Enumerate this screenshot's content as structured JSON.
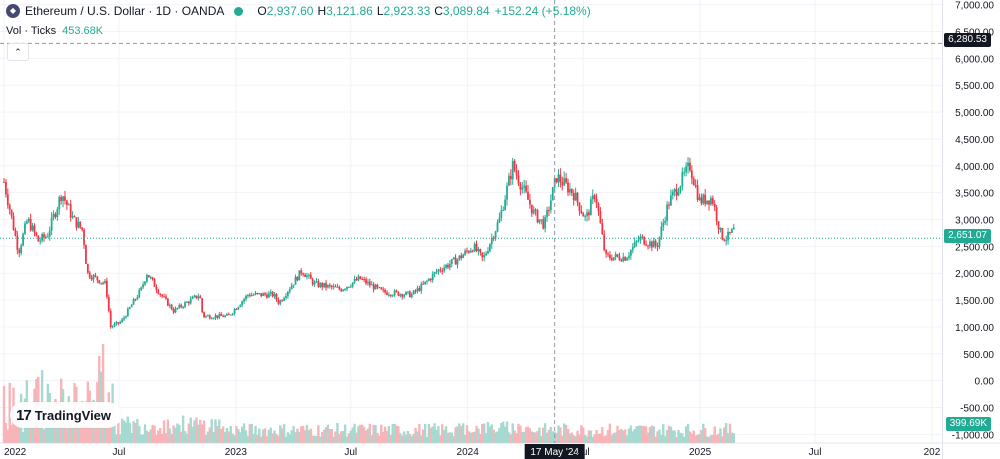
{
  "header": {
    "symbol_title": "Ethereum / U.S. Dollar · 1D · OANDA",
    "logo_glyph": "◆",
    "ohlc": [
      {
        "key": "O",
        "value": "2,937.60"
      },
      {
        "key": "H",
        "value": "3,121.86"
      },
      {
        "key": "L",
        "value": "2,923.33"
      },
      {
        "key": "C",
        "value": "3,089.84"
      }
    ],
    "change": "+152.24 (+5.18%)",
    "volume_label": "Vol · Ticks",
    "volume_value": "453.68K",
    "collapse_glyph": "⌃"
  },
  "branding": {
    "mark": "17",
    "name": "TradingView"
  },
  "colors": {
    "up": "#22ab94",
    "down": "#f23645",
    "vol_up": "#a7d9d0",
    "vol_down": "#f7b4b9",
    "grid": "#f0f3fa",
    "axis_text": "#131722"
  },
  "chart_data": {
    "type": "candlestick",
    "title": "Ethereum / U.S. Dollar · 1D · OANDA",
    "y_axis": {
      "ticks": [
        7000,
        6500,
        6000,
        5500,
        5000,
        4500,
        4000,
        3500,
        3000,
        2500,
        2000,
        1500,
        1000,
        500,
        0,
        -500,
        -1000
      ],
      "tick_labels": [
        "7,000.00",
        "6,500.00",
        "6,000.00",
        "5,500.00",
        "5,000.00",
        "4,500.00",
        "4,000.00",
        "3,500.00",
        "3,000.00",
        "2,500.00",
        "2,000.00",
        "1,500.00",
        "1,000.00",
        "500.00",
        "0.00",
        "-500.00",
        "-1,000.00"
      ],
      "range": [
        -1050,
        7050
      ]
    },
    "x_axis": {
      "tick_labels": [
        "2022",
        "Jul",
        "2023",
        "Jul",
        "2024",
        "Jul",
        "2025",
        "Jul",
        "202"
      ],
      "tick_dates": [
        "2022-01-01",
        "2022-07-01",
        "2023-01-01",
        "2023-07-01",
        "2024-01-01",
        "2024-07-01",
        "2025-01-01",
        "2025-07-01",
        "2026-01-01"
      ],
      "range": [
        "2022-01-01",
        "2026-01-20"
      ]
    },
    "price_series": [
      {
        "date": "2022-01-01",
        "close": 3700
      },
      {
        "date": "2022-01-10",
        "close": 3200
      },
      {
        "date": "2022-01-24",
        "close": 2400
      },
      {
        "date": "2022-02-07",
        "close": 3000
      },
      {
        "date": "2022-02-24",
        "close": 2600
      },
      {
        "date": "2022-03-10",
        "close": 2700
      },
      {
        "date": "2022-04-02",
        "close": 3500
      },
      {
        "date": "2022-04-20",
        "close": 3000
      },
      {
        "date": "2022-05-05",
        "close": 2800
      },
      {
        "date": "2022-05-12",
        "close": 2000
      },
      {
        "date": "2022-06-10",
        "close": 1800
      },
      {
        "date": "2022-06-18",
        "close": 1000
      },
      {
        "date": "2022-07-05",
        "close": 1100
      },
      {
        "date": "2022-08-05",
        "close": 1700
      },
      {
        "date": "2022-08-14",
        "close": 2000
      },
      {
        "date": "2022-09-05",
        "close": 1600
      },
      {
        "date": "2022-09-25",
        "close": 1300
      },
      {
        "date": "2022-11-05",
        "close": 1600
      },
      {
        "date": "2022-11-10",
        "close": 1200
      },
      {
        "date": "2022-12-20",
        "close": 1200
      },
      {
        "date": "2023-01-20",
        "close": 1600
      },
      {
        "date": "2023-03-01",
        "close": 1600
      },
      {
        "date": "2023-03-10",
        "close": 1450
      },
      {
        "date": "2023-04-15",
        "close": 2050
      },
      {
        "date": "2023-05-05",
        "close": 1800
      },
      {
        "date": "2023-06-15",
        "close": 1700
      },
      {
        "date": "2023-07-15",
        "close": 1900
      },
      {
        "date": "2023-08-20",
        "close": 1650
      },
      {
        "date": "2023-10-05",
        "close": 1600
      },
      {
        "date": "2023-10-25",
        "close": 1800
      },
      {
        "date": "2023-11-15",
        "close": 2050
      },
      {
        "date": "2023-12-15",
        "close": 2250
      },
      {
        "date": "2024-01-10",
        "close": 2500
      },
      {
        "date": "2024-01-25",
        "close": 2250
      },
      {
        "date": "2024-02-20",
        "close": 3000
      },
      {
        "date": "2024-03-12",
        "close": 4000
      },
      {
        "date": "2024-04-15",
        "close": 3100
      },
      {
        "date": "2024-05-01",
        "close": 2900
      },
      {
        "date": "2024-05-20",
        "close": 3800
      },
      {
        "date": "2024-06-15",
        "close": 3500
      },
      {
        "date": "2024-07-05",
        "close": 3000
      },
      {
        "date": "2024-07-20",
        "close": 3500
      },
      {
        "date": "2024-08-05",
        "close": 2300
      },
      {
        "date": "2024-09-06",
        "close": 2300
      },
      {
        "date": "2024-09-28",
        "close": 2650
      },
      {
        "date": "2024-10-25",
        "close": 2500
      },
      {
        "date": "2024-11-12",
        "close": 3300
      },
      {
        "date": "2024-12-16",
        "close": 4000
      },
      {
        "date": "2024-12-31",
        "close": 3350
      },
      {
        "date": "2025-01-20",
        "close": 3400
      },
      {
        "date": "2025-02-03",
        "close": 2700
      },
      {
        "date": "2025-02-12",
        "close": 2650
      },
      {
        "date": "2025-02-23",
        "close": 2800
      }
    ],
    "crosshair": {
      "date": "2024-05-17",
      "date_label": "17 May '24",
      "price": 6280.53,
      "price_label": "6,280.53"
    },
    "last_price": {
      "value": 2651.07,
      "label": "2,651.07"
    },
    "last_volume": {
      "value": 399690,
      "label": "399.69K"
    }
  }
}
